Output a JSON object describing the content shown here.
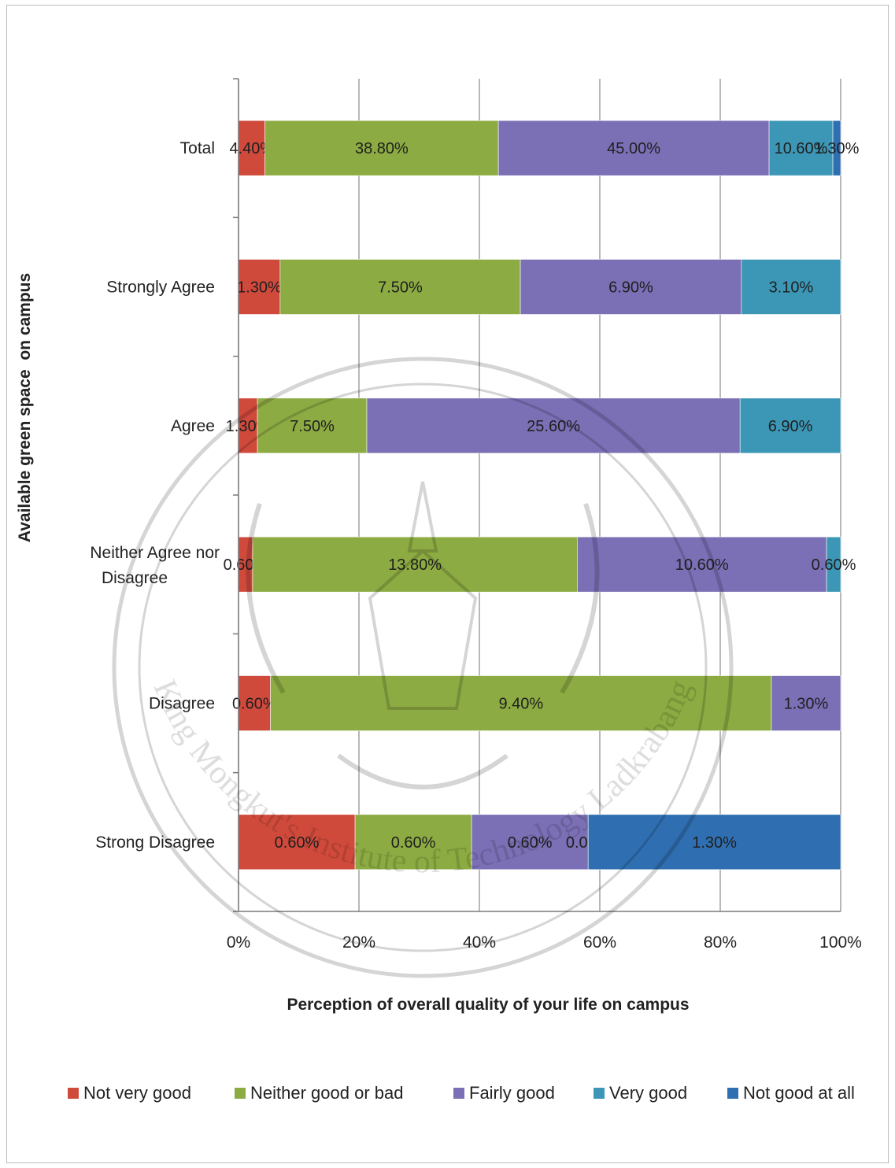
{
  "chart_data": {
    "type": "bar",
    "orientation": "horizontal",
    "stacked": "percent",
    "xlabel": "Perception of overall quality of your life on campus",
    "ylabel": "Available green space  on campus",
    "x_ticks": [
      "0%",
      "20%",
      "40%",
      "60%",
      "80%",
      "100%"
    ],
    "xlim": [
      0,
      100
    ],
    "grid": true,
    "legend_position": "bottom",
    "categories": [
      "Total",
      "Strongly Agree",
      "Agree",
      "Neither Agree   nor Disagree",
      "Disagree",
      "Strong Disagree"
    ],
    "series": [
      {
        "name": "Not very good",
        "color": "#d04a3c",
        "values": [
          4.4,
          1.3,
          1.3,
          0.6,
          0.6,
          0.6
        ],
        "labels": [
          "4.40%",
          "1.30%",
          "1.30%",
          "0.60%",
          "0.60%",
          "0.60%"
        ]
      },
      {
        "name": "Neither good or bad",
        "color": "#8cab42",
        "values": [
          38.8,
          7.5,
          7.5,
          13.8,
          9.4,
          0.6
        ],
        "labels": [
          "38.80%",
          "7.50%",
          "7.50%",
          "13.80%",
          "9.40%",
          "0.60%"
        ]
      },
      {
        "name": "Fairly good",
        "color": "#7b6fb5",
        "values": [
          45.0,
          6.9,
          25.6,
          10.6,
          1.3,
          0.6
        ],
        "labels": [
          "45.00%",
          "6.90%",
          "25.60%",
          "10.60%",
          "1.30%",
          "0.60%"
        ]
      },
      {
        "name": "Very good",
        "color": "#3c97b6",
        "values": [
          10.6,
          3.1,
          6.9,
          0.6,
          0.0,
          0.0
        ],
        "labels": [
          "10.60%",
          "3.10%",
          "6.90%",
          "0.60%",
          "",
          "0.00%"
        ]
      },
      {
        "name": "Not good at all",
        "color": "#2f6fb1",
        "values": [
          1.3,
          0.0,
          0.0,
          0.0,
          0.0,
          1.3
        ],
        "labels": [
          "1.30%",
          "",
          "",
          "",
          "",
          "1.30%"
        ]
      }
    ]
  },
  "watermark": {
    "text": "King Mongkut's Institute of Technology Ladkrabang"
  }
}
